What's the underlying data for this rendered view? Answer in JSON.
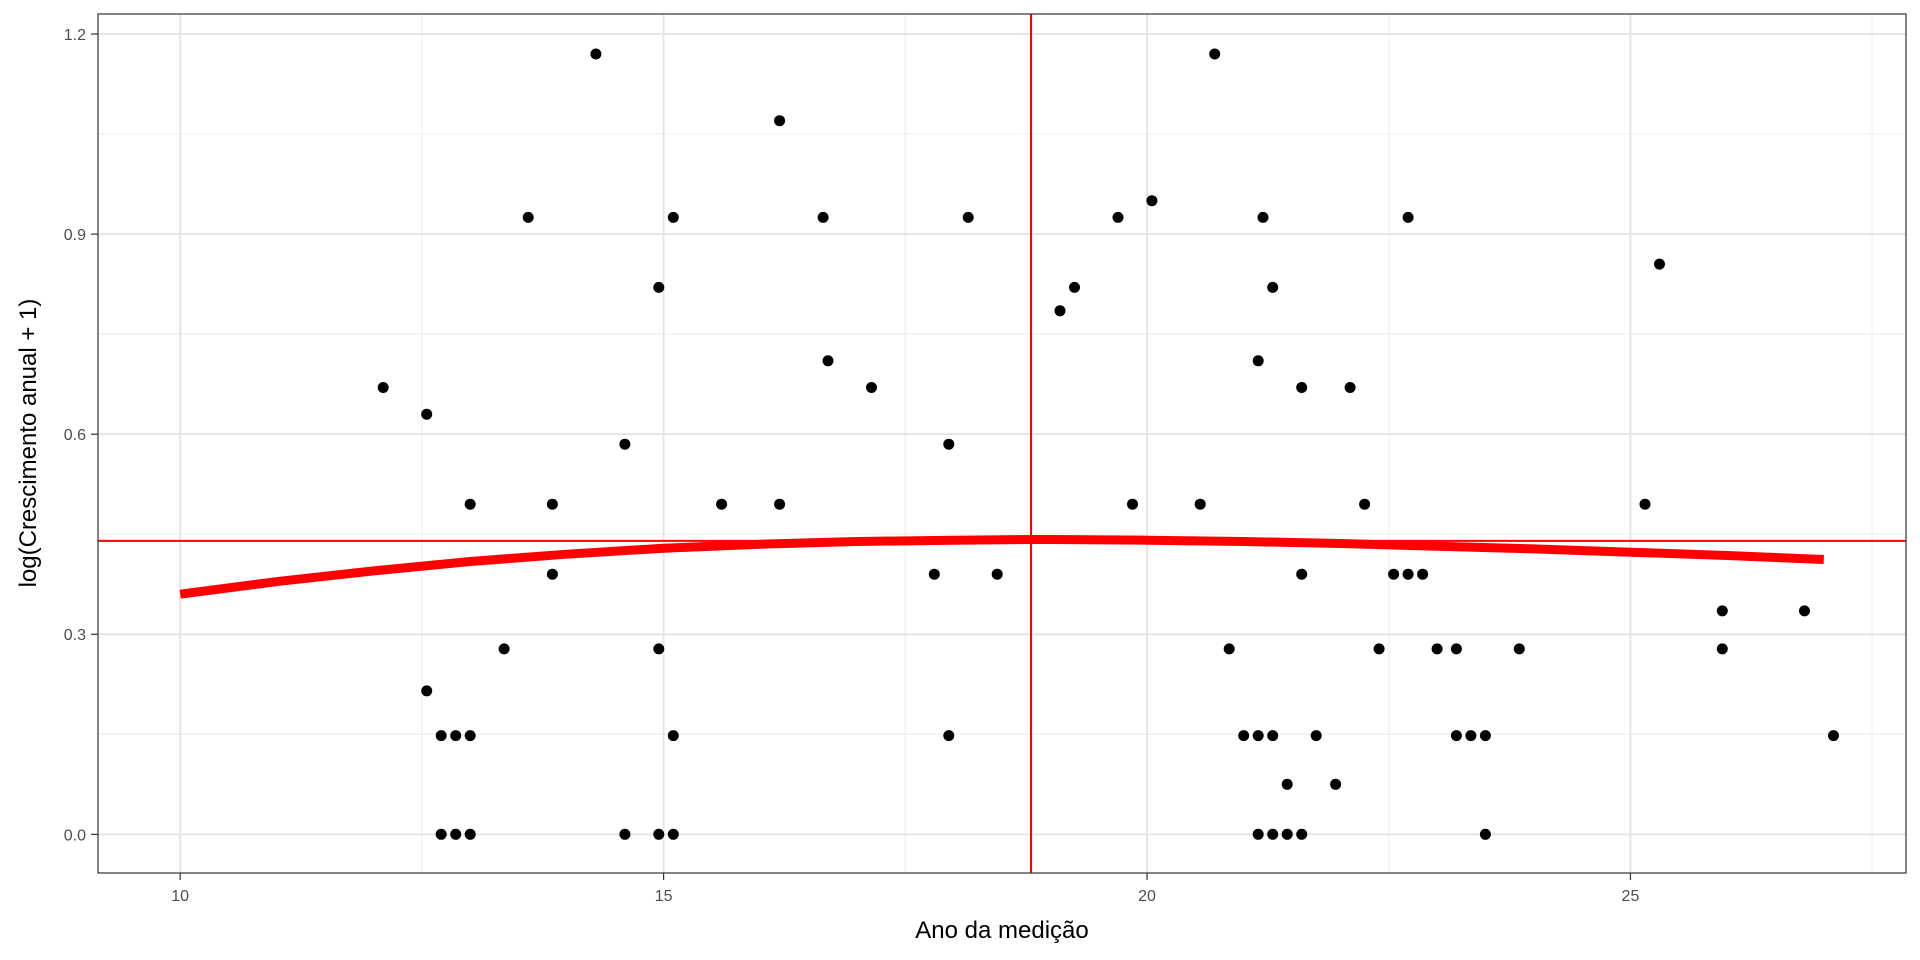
{
  "chart_data": {
    "type": "scatter",
    "title": "",
    "xlabel": "Ano da medição",
    "ylabel": "log(Crescimento anual + 1)",
    "xlim": [
      9.15,
      27.85
    ],
    "ylim": [
      -0.058,
      1.23
    ],
    "x_ticks": [
      10,
      15,
      20,
      25
    ],
    "y_ticks": [
      0.0,
      0.3,
      0.6,
      0.9,
      1.2
    ],
    "x_tick_labels": [
      "10",
      "15",
      "20",
      "25"
    ],
    "y_tick_labels": [
      "0.0",
      "0.3",
      "0.6",
      "0.9",
      "1.2"
    ],
    "grid": true,
    "legend": "none",
    "points": [
      {
        "x": 12.1,
        "y": 0.67
      },
      {
        "x": 12.55,
        "y": 0.63
      },
      {
        "x": 12.55,
        "y": 0.215
      },
      {
        "x": 12.7,
        "y": 0.148
      },
      {
        "x": 12.7,
        "y": 0.0
      },
      {
        "x": 12.85,
        "y": 0.148
      },
      {
        "x": 12.85,
        "y": 0.0
      },
      {
        "x": 13.0,
        "y": 0.495
      },
      {
        "x": 13.0,
        "y": 0.148
      },
      {
        "x": 13.0,
        "y": 0.0
      },
      {
        "x": 13.35,
        "y": 0.278
      },
      {
        "x": 13.6,
        "y": 0.925
      },
      {
        "x": 13.85,
        "y": 0.495
      },
      {
        "x": 13.85,
        "y": 0.39
      },
      {
        "x": 14.3,
        "y": 1.17
      },
      {
        "x": 14.6,
        "y": 0.585
      },
      {
        "x": 14.6,
        "y": 0.0
      },
      {
        "x": 14.95,
        "y": 0.82
      },
      {
        "x": 14.95,
        "y": 0.278
      },
      {
        "x": 14.95,
        "y": 0.0
      },
      {
        "x": 15.1,
        "y": 0.925
      },
      {
        "x": 15.1,
        "y": 0.148
      },
      {
        "x": 15.1,
        "y": 0.0
      },
      {
        "x": 15.6,
        "y": 0.495
      },
      {
        "x": 16.2,
        "y": 1.07
      },
      {
        "x": 16.2,
        "y": 0.495
      },
      {
        "x": 16.65,
        "y": 0.925
      },
      {
        "x": 16.7,
        "y": 0.71
      },
      {
        "x": 17.15,
        "y": 0.67
      },
      {
        "x": 17.8,
        "y": 0.39
      },
      {
        "x": 17.95,
        "y": 0.585
      },
      {
        "x": 17.95,
        "y": 0.148
      },
      {
        "x": 18.15,
        "y": 0.925
      },
      {
        "x": 18.45,
        "y": 0.39
      },
      {
        "x": 19.1,
        "y": 0.785
      },
      {
        "x": 19.25,
        "y": 0.82
      },
      {
        "x": 19.7,
        "y": 0.925
      },
      {
        "x": 19.85,
        "y": 0.495
      },
      {
        "x": 20.05,
        "y": 0.95
      },
      {
        "x": 20.55,
        "y": 0.495
      },
      {
        "x": 20.7,
        "y": 1.17
      },
      {
        "x": 20.85,
        "y": 0.278
      },
      {
        "x": 21.0,
        "y": 0.148
      },
      {
        "x": 21.15,
        "y": 0.71
      },
      {
        "x": 21.15,
        "y": 0.148
      },
      {
        "x": 21.15,
        "y": 0.0
      },
      {
        "x": 21.2,
        "y": 0.925
      },
      {
        "x": 21.3,
        "y": 0.82
      },
      {
        "x": 21.3,
        "y": 0.148
      },
      {
        "x": 21.3,
        "y": 0.0
      },
      {
        "x": 21.45,
        "y": 0.075
      },
      {
        "x": 21.45,
        "y": 0.0
      },
      {
        "x": 21.6,
        "y": 0.67
      },
      {
        "x": 21.6,
        "y": 0.39
      },
      {
        "x": 21.6,
        "y": 0.0
      },
      {
        "x": 21.75,
        "y": 0.148
      },
      {
        "x": 21.95,
        "y": 0.075
      },
      {
        "x": 22.1,
        "y": 0.67
      },
      {
        "x": 22.25,
        "y": 0.495
      },
      {
        "x": 22.4,
        "y": 0.278
      },
      {
        "x": 22.55,
        "y": 0.39
      },
      {
        "x": 22.7,
        "y": 0.925
      },
      {
        "x": 22.7,
        "y": 0.39
      },
      {
        "x": 22.85,
        "y": 0.39
      },
      {
        "x": 23.0,
        "y": 0.278
      },
      {
        "x": 23.2,
        "y": 0.278
      },
      {
        "x": 23.2,
        "y": 0.148
      },
      {
        "x": 23.35,
        "y": 0.148
      },
      {
        "x": 23.5,
        "y": 0.148
      },
      {
        "x": 23.5,
        "y": 0.0
      },
      {
        "x": 23.85,
        "y": 0.278
      },
      {
        "x": 25.15,
        "y": 0.495
      },
      {
        "x": 25.3,
        "y": 0.855
      },
      {
        "x": 25.95,
        "y": 0.335
      },
      {
        "x": 25.95,
        "y": 0.278
      },
      {
        "x": 26.8,
        "y": 0.335
      },
      {
        "x": 27.1,
        "y": 0.148
      }
    ],
    "fit_curve": {
      "x": [
        10,
        11,
        12,
        13,
        14,
        15,
        16,
        17,
        18,
        18.8,
        19,
        20,
        21,
        22,
        23,
        24,
        25,
        26,
        27
      ],
      "y": [
        0.36,
        0.379,
        0.395,
        0.409,
        0.42,
        0.429,
        0.435,
        0.439,
        0.441,
        0.442,
        0.442,
        0.441,
        0.439,
        0.436,
        0.432,
        0.428,
        0.423,
        0.418,
        0.412
      ],
      "color": "#ff0000"
    },
    "reference_lines": {
      "vertical_x": 18.8,
      "horizontal_y": 0.44,
      "color": "#ff0000"
    },
    "point_color": "#000000"
  }
}
